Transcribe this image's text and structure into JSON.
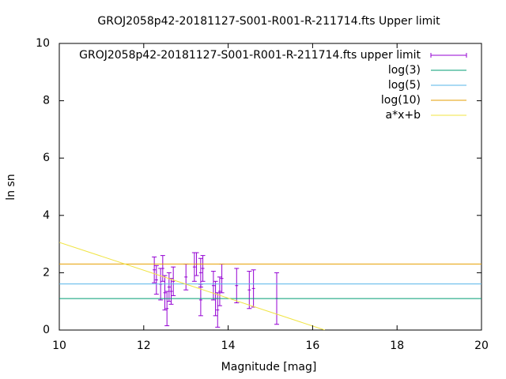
{
  "chart_data": {
    "type": "errorbar",
    "title": "GROJ2058p42-20181127-S001-R001-R-211714.fts Upper limit",
    "x_label": "Magnitude [mag]",
    "y_label": "ln sn",
    "xlim": [
      10,
      20
    ],
    "ylim": [
      0,
      10
    ],
    "xticks": [
      10,
      12,
      14,
      16,
      18,
      20
    ],
    "yticks": [
      0,
      2,
      4,
      6,
      8,
      10
    ],
    "legend": "top-right",
    "series": [
      {
        "name": "GROJ2058p42-20181127-S001-R001-R-211714.fts upper limit",
        "kind": "errorbar",
        "color": "#9400d3",
        "x": [
          12.25,
          12.3,
          12.4,
          12.45,
          12.5,
          12.55,
          12.6,
          12.65,
          12.7,
          13.0,
          13.2,
          13.25,
          13.35,
          13.35,
          13.4,
          13.65,
          13.7,
          13.75,
          13.8,
          13.85,
          14.2,
          14.5,
          14.6,
          15.15
        ],
        "values": [
          2.1,
          1.75,
          1.6,
          2.15,
          1.3,
          0.75,
          1.5,
          1.35,
          1.7,
          1.85,
          2.2,
          2.3,
          2.0,
          1.05,
          2.15,
          1.55,
          1.1,
          0.7,
          1.35,
          1.8,
          1.55,
          1.4,
          1.45,
          1.1
        ],
        "errors": [
          0.45,
          0.5,
          0.55,
          0.45,
          0.6,
          0.6,
          0.5,
          0.45,
          0.5,
          0.45,
          0.5,
          0.4,
          0.5,
          0.55,
          0.45,
          0.5,
          0.6,
          0.6,
          0.5,
          0.5,
          0.6,
          0.65,
          0.65,
          0.9
        ]
      },
      {
        "name": "log(3)",
        "kind": "hline",
        "color": "#009e73",
        "values": [
          1.0986
        ]
      },
      {
        "name": "log(5)",
        "kind": "hline",
        "color": "#56b4e9",
        "values": [
          1.6094
        ]
      },
      {
        "name": "log(10)",
        "kind": "hline",
        "color": "#e69f00",
        "values": [
          2.3026
        ]
      },
      {
        "name": "a*x+b",
        "kind": "line",
        "color": "#f0e442",
        "x": [
          10,
          16.29
        ],
        "values": [
          3.06,
          0
        ]
      }
    ]
  }
}
